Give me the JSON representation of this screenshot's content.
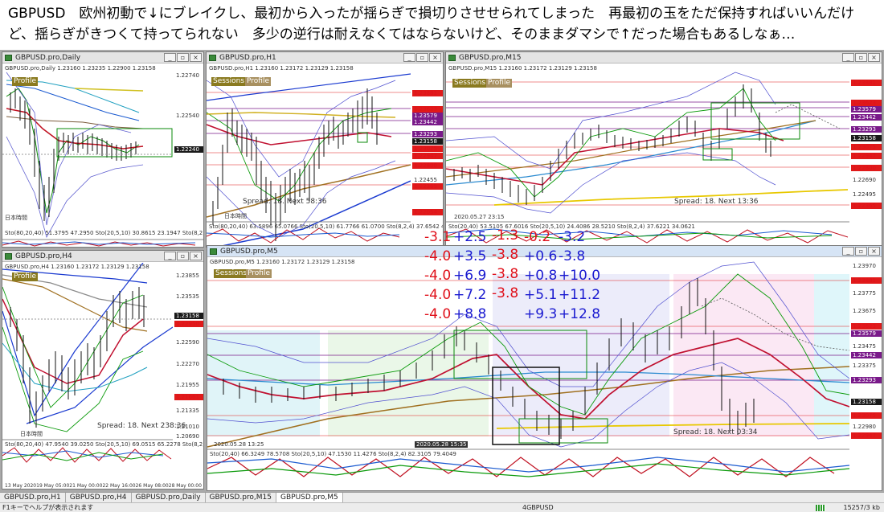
{
  "header": {
    "line1": "GBPUSD　欧州初動で↓にブレイクし、最初から入ったが揺らぎで損切りさせせられてしまった　再最初の玉をただ保持すればいいんだけ",
    "line2": "ど、揺らぎがきつくて持ってられない　多少の逆行は耐えなくてはならないけど、そのままダマシで↑だった場合もあるしなぁ…"
  },
  "windows": {
    "daily": {
      "title": "GBPUSD.pro,Daily",
      "info": "GBPUSD.pro,Daily 1.23160 1.23235 1.22900 1.23158",
      "tag_profile": "Profile",
      "jp": "日本時間",
      "sto": "Sto(80,20,40) 51.3795 47.2950  Sto(20,5,10) 30.8615 23.1947  Sto(8,2,4) 74.3216 72.4",
      "prices": [
        "1.22740",
        "1.22540",
        "1.22240"
      ]
    },
    "h1": {
      "title": "GBPUSD.pro,H1",
      "info": "GBPUSD.pro,H1 1.23160 1.23172 1.23129 1.23158",
      "tag_sessions": "Sessions",
      "tag_profile": "Profile",
      "spread": "Spread: 18. Next 58:36",
      "jp": "日本時間",
      "sto": "Sto(80,20,40) 63.5896 65.0766  Sto(20,5,10) 61.7766 61.0700  Sto(8,2,4) 37.6542 43.5002",
      "prices": [
        "1.23881",
        "1.23623",
        "1.23579",
        "1.23442",
        "1.23293",
        "1.23158",
        "1.23075",
        "1.22947",
        "1.22800",
        "1.22455",
        "1.22365",
        "1.22054"
      ]
    },
    "m15": {
      "title": "GBPUSD.pro,M15",
      "info": "GBPUSD.pro,M15 1.23160 1.23172 1.23129 1.23158",
      "tag_sessions": "Sessions",
      "tag_profile": "Profile",
      "spread": "Spread: 18. Next 13:36",
      "date": "2020.05.27 23:15",
      "sto": "Sto(20,40) 53.5105 67.6016  Sto(20,5,10) 24.4086 28.5210  Sto(8,2,4) 37.6221 34.0621",
      "prices": [
        "1.23881",
        "1.23623",
        "1.23579",
        "1.23442",
        "1.23293",
        "1.23158",
        "1.23075",
        "1.22947",
        "1.22800",
        "1.22690",
        "1.22495",
        "1.22365"
      ]
    },
    "h4": {
      "title": "GBPUSD.pro,H4",
      "info": "GBPUSD.pro,H4 1.23160 1.23172 1.23129 1.23158",
      "tag_profile": "Profile",
      "spread": "Spread: 18. Next 238:36",
      "jp": "日本時間",
      "sto": "Sto(80,20,40) 47.9540 39.0250  Sto(20,5,10) 69.0515 65.2278  Sto(8,2,4) 56.2430 63.1894",
      "prices": [
        "1.23855",
        "1.23535",
        "1.23158",
        "1.22950",
        "1.22590",
        "1.22270",
        "1.21955",
        "1.21661",
        "1.21335",
        "1.21010",
        "1.20690"
      ],
      "dates": [
        "13 May 2020",
        "19 May 05:00",
        "21 May 00:00",
        "22 May 16:00",
        "26 May 08:00",
        "28 May 00:00"
      ]
    },
    "m5": {
      "title": "GBPUSD.pro,M5",
      "info": "GBPUSD.pro,M5 1.23160 1.23172 1.23129 1.23158",
      "tag_sessions": "Sessions",
      "tag_profile": "Profile",
      "spread": "Spread: 18. Next 03:34",
      "date1": "2020.05.28 13:25",
      "date2": "2020.05.28 15:35",
      "sto": "Sto(20,40) 66.3249 78.5708  Sto(20,5,10) 47.1530 11.4276  Sto(8,2,4) 82.3105 79.4049",
      "prices": [
        "1.23970",
        "1.23881",
        "1.23775",
        "1.23675",
        "1.23623",
        "1.23579",
        "1.23475",
        "1.23442",
        "1.23375",
        "1.23293",
        "1.23158",
        "1.23075",
        "1.22980",
        "1.22947"
      ]
    }
  },
  "overlay": {
    "col_red1": [
      "-3.1",
      "-4.0",
      "-4.0",
      "-4.0",
      "-4.0"
    ],
    "col_blue1": [
      "+2.5",
      "+3.5",
      "+6.9",
      "+7.2",
      "+8.8"
    ],
    "col_red2": [
      "-1.3",
      "-3.8",
      "-3.8",
      "-3.8"
    ],
    "col_red3": [
      "-0.2"
    ],
    "col_blue2": [
      "+0.6",
      "+0.8",
      "+5.1",
      "+9.3"
    ],
    "col_blue3": [
      "-3.2",
      "-3.8",
      "+10.0",
      "+11.2",
      "+12.8"
    ]
  },
  "tabs": [
    "GBPUSD.pro,H1",
    "GBPUSD.pro,H4",
    "GBPUSD.pro,Daily",
    "GBPUSD.pro,M15",
    "GBPUSD.pro,M5"
  ],
  "status": {
    "left": "F1キーでヘルプが表示されます",
    "mid": "4GBPUSD",
    "right": "15257/3 kb"
  },
  "colors": {
    "red": "#e0101a",
    "blue": "#1a1ad0",
    "mdi_bg": "#a9a9a9"
  }
}
